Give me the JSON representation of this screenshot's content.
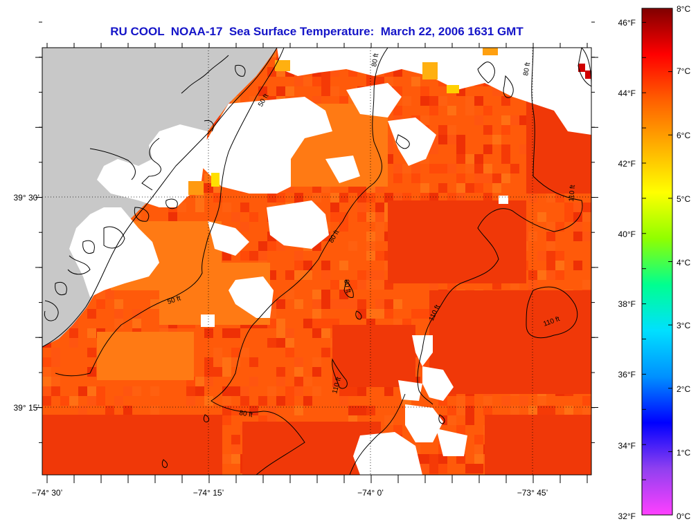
{
  "title": "RU COOL  NOAA-17  Sea Surface Temperature:  March 22, 2006 1631 GMT",
  "map": {
    "lon_labels": [
      "−74° 30’",
      "−74° 15’",
      "−74° 0’",
      "−73° 45’"
    ],
    "lat_labels": [
      "39° 30’",
      "39° 15’"
    ],
    "contour_labels": [
      "50 ft",
      "50 ft",
      "80 ft",
      "80 ft",
      "80 ft",
      "80 ft",
      "110 ft",
      "110 ft",
      "110 ft",
      "110 ft",
      "80 ft"
    ],
    "colors": {
      "land": "#c8c8c8",
      "cloud": "#ffffff",
      "sst_dominant": "#ff5a0a",
      "frame": "#000000"
    }
  },
  "colorbar": {
    "fahrenheit_labels": [
      "46°F",
      "44°F",
      "42°F",
      "40°F",
      "38°F",
      "36°F",
      "34°F",
      "32°F"
    ],
    "celsius_labels": [
      "8°C",
      "7°C",
      "6°C",
      "5°C",
      "4°C",
      "3°C",
      "2°C",
      "1°C",
      "0°C"
    ],
    "range_celsius": [
      0,
      8
    ],
    "colors": [
      "#ff40ff",
      "#9040f0",
      "#0000ff",
      "#0090ff",
      "#00e0ff",
      "#00ff90",
      "#90ff00",
      "#ffff00",
      "#ffb000",
      "#ff6000",
      "#ff0000",
      "#800000"
    ]
  }
}
